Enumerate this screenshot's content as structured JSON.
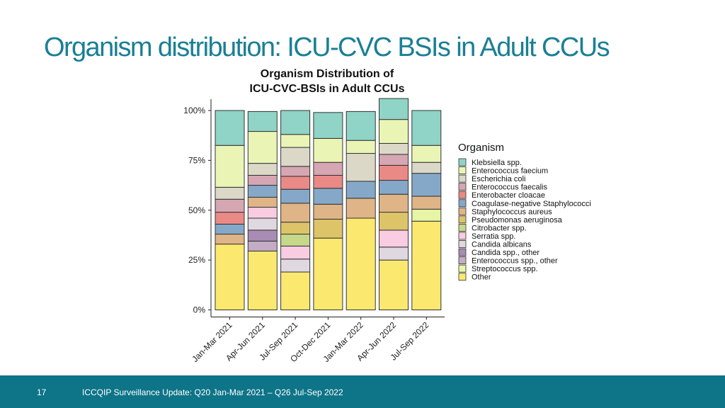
{
  "slide": {
    "title": "Organism distribution: ICU-CVC BSIs in Adult CCUs",
    "page_number": "17",
    "footer_text": "ICCQIP Surveillance Update: Q20 Jan-Mar 2021 – Q26 Jul-Sep 2022",
    "title_color": "#1a7f95",
    "footer_color": "#0e7488"
  },
  "chart_data": {
    "type": "bar",
    "stacked": true,
    "title_lines": [
      "Organism Distribution of",
      "ICU-CVC-BSIs in Adult CCUs"
    ],
    "xlabel": "",
    "ylabel": "",
    "ylim": [
      0,
      100
    ],
    "y_ticks": [
      "0%",
      "25%",
      "50%",
      "75%",
      "100%"
    ],
    "legend_title": "Organism",
    "legend_position": "right",
    "grid": false,
    "categories": [
      "Jan-Mar 2021",
      "Apr-Jun 2021",
      "Jul-Sep 2021",
      "Oct-Dec 2021",
      "Jan-Mar 2022",
      "Apr-Jun 2022",
      "Jul-Sep 2022"
    ],
    "series": [
      {
        "name": "Other",
        "color": "#fbe86f",
        "values": [
          33,
          29.5,
          19,
          36,
          46,
          25,
          44.5
        ]
      },
      {
        "name": "Streptococcus spp.",
        "color": "#e6f5a6",
        "values": [
          0,
          0,
          0,
          0,
          0,
          0,
          6
        ]
      },
      {
        "name": "Enterococcus spp., other",
        "color": "#c4acc4",
        "values": [
          0,
          5,
          0,
          0,
          0,
          0,
          0
        ]
      },
      {
        "name": "Candida spp., other",
        "color": "#a88cb4",
        "values": [
          0,
          5.5,
          0,
          0,
          0,
          0,
          0
        ]
      },
      {
        "name": "Candida albicans",
        "color": "#e0d8e0",
        "values": [
          0,
          6,
          6.5,
          0,
          0,
          6.5,
          0
        ]
      },
      {
        "name": "Serratia spp.",
        "color": "#f9cce2",
        "values": [
          0,
          5.5,
          6.5,
          0,
          0,
          8.5,
          0
        ]
      },
      {
        "name": "Citrobacter spp.",
        "color": "#c6d88a",
        "values": [
          0,
          0,
          6,
          0,
          0,
          0,
          0
        ]
      },
      {
        "name": "Pseudomonas aeruginosa",
        "color": "#ddc469",
        "values": [
          0,
          0,
          6,
          9.5,
          0,
          9,
          0
        ]
      },
      {
        "name": "Staphylococcus aureus",
        "color": "#dfb487",
        "values": [
          5,
          5,
          9.5,
          7.5,
          10,
          9,
          6.5
        ]
      },
      {
        "name": "Coagulase-negative Staphylococci",
        "color": "#86a8c8",
        "values": [
          5,
          6,
          7,
          8,
          8.5,
          7,
          11.5
        ]
      },
      {
        "name": "Enterobacter cloacae",
        "color": "#e98a86",
        "values": [
          6,
          0,
          6.5,
          6.5,
          0,
          7.5,
          0
        ]
      },
      {
        "name": "Enterococcus faecalis",
        "color": "#d6a6b3",
        "values": [
          6.5,
          5,
          5,
          6.5,
          0,
          5.5,
          0
        ]
      },
      {
        "name": "Escherichia coli",
        "color": "#dbd8c8",
        "values": [
          6,
          6,
          9.5,
          0,
          14,
          5.5,
          5.5
        ]
      },
      {
        "name": "Enterococcus faecium",
        "color": "#eaf5b5",
        "values": [
          21,
          16,
          6.5,
          12,
          6.5,
          12,
          8.5
        ]
      },
      {
        "name": "Klebsiella spp.",
        "color": "#8fd4c6",
        "values": [
          17.5,
          10,
          12,
          13,
          14.5,
          10.5,
          17.5
        ]
      }
    ]
  }
}
